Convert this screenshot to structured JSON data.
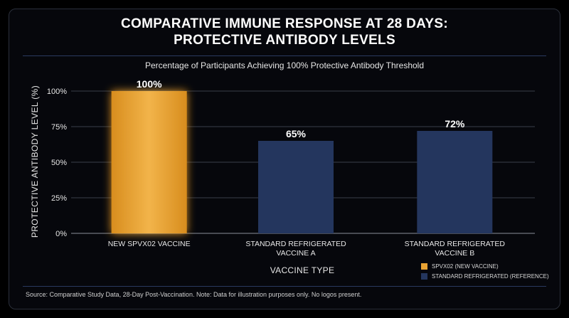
{
  "header": {
    "title_line1": "COMPARATIVE IMMUNE RESPONSE AT 28 DAYS:",
    "title_line2": "PROTECTIVE ANTIBODY LEVELS",
    "subtitle": "Percentage of Participants Achieving 100% Protective Antibody Threshold"
  },
  "footer": {
    "source": "Source: Comparative Study Data, 28-Day Post-Vaccination. Note: Data for illustration purposes only. No logos present."
  },
  "colors": {
    "new": "#e9a233",
    "reference": "#24365e",
    "grid": "#3a3f4a"
  },
  "chart_data": {
    "type": "bar",
    "ylabel": "PROTECTIVE ANTIBODY LEVEL (%)",
    "xlabel": "VACCINE TYPE",
    "ylim": [
      0,
      100
    ],
    "yticks": [
      "0%",
      "25%",
      "50%",
      "75%",
      "100%"
    ],
    "ytick_values": [
      0,
      25,
      50,
      75,
      100
    ],
    "grid": true,
    "categories": [
      [
        "NEW SPVX02 VACCINE"
      ],
      [
        "STANDARD REFRIGERATED",
        "VACCINE A"
      ],
      [
        "STANDARD REFRIGERATED",
        "VACCINE B"
      ]
    ],
    "values": [
      100,
      65,
      72
    ],
    "data_labels": [
      "100%",
      "65%",
      "72%"
    ],
    "bar_groups": [
      "new",
      "reference",
      "reference"
    ],
    "legend_placement": "bottom-right",
    "legend": [
      {
        "group": "new",
        "label": "SPVX02 (NEW VACCINE)"
      },
      {
        "group": "reference",
        "label": "STANDARD REFRIGERATED (REFERENCE)"
      }
    ]
  }
}
